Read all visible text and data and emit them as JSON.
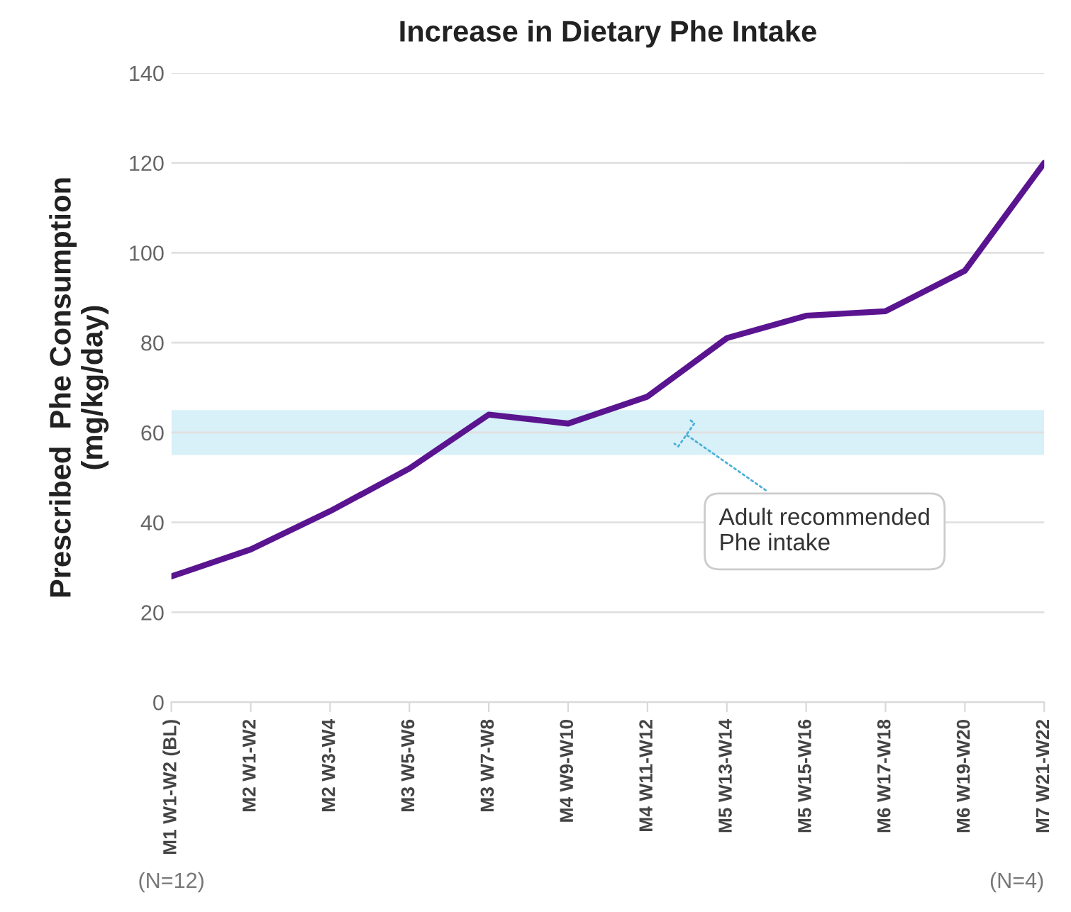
{
  "chart_data": {
    "type": "line",
    "title": "Increase in Dietary Phe Intake",
    "ylabel": "Prescribed  Phe Consumption\n(mg/kg/day)",
    "categories": [
      "M1 W1-W2 (BL)",
      "M2 W1-W2",
      "M2 W3-W4",
      "M3 W5-W6",
      "M3 W7-W8",
      "M4 W9-W10",
      "M4 W11-W12",
      "M5 W13-W14",
      "M5 W15-W16",
      "M6 W17-W18",
      "M6 W19-W20",
      "M7 W21-W22"
    ],
    "series": [
      {
        "color": "#5a1490",
        "values": [
          28,
          34,
          42.5,
          52,
          64,
          62,
          68,
          81,
          86,
          87,
          96,
          120
        ]
      }
    ],
    "ylim": [
      0,
      140
    ],
    "yticks": [
      0,
      20,
      40,
      60,
      80,
      100,
      120,
      140
    ],
    "grid": "y",
    "marker": "none",
    "line_style": "solid",
    "bands": [
      {
        "axis": "y",
        "from": 55,
        "to": 65,
        "label": "Adult recommended\nPhe intake",
        "color": "#d8f0f8"
      }
    ],
    "annotations": [
      "(N=12)",
      "(N=4)"
    ]
  }
}
